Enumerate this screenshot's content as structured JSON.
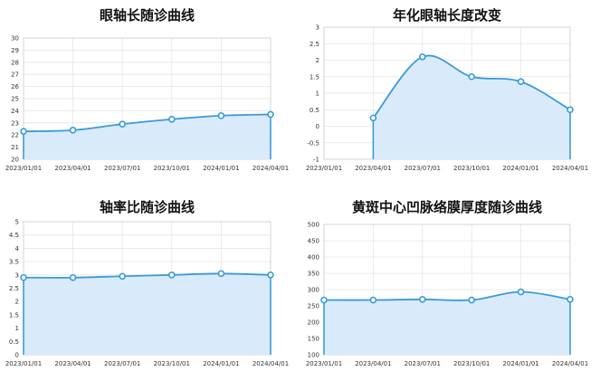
{
  "chart_data": [
    {
      "type": "area",
      "title": "眼轴长随诊曲线",
      "categories": [
        "2023/01/01",
        "2023/04/01",
        "2023/07/01",
        "2023/10/01",
        "2024/01/01",
        "2024/04/01"
      ],
      "series": [
        {
          "values": [
            22.3,
            22.4,
            22.9,
            23.3,
            23.6,
            23.7
          ]
        }
      ],
      "ylim": [
        20,
        30
      ],
      "yticks": [
        "20",
        "21",
        "22",
        "23",
        "24",
        "25",
        "26",
        "27",
        "28",
        "29",
        "30"
      ],
      "grid": true,
      "color": "#3a9ad9",
      "fill": "#d9ebfb"
    },
    {
      "type": "area",
      "title": "年化眼轴长度改变",
      "categories": [
        "2023/01/01",
        "2023/04/01",
        "2023/07/01",
        "2023/10/01",
        "2024/01/01",
        "2024/04/01"
      ],
      "series": [
        {
          "values": [
            null,
            0.25,
            2.1,
            1.5,
            1.35,
            0.5
          ]
        }
      ],
      "ylim": [
        -1,
        3
      ],
      "yticks": [
        "-1",
        "-0.5",
        "0",
        "0.5",
        "1",
        "1.5",
        "2",
        "2.5",
        "3"
      ],
      "grid": true,
      "color": "#3a9ad9",
      "fill": "#d9ebfb"
    },
    {
      "type": "area",
      "title": "轴率比随诊曲线",
      "categories": [
        "2023/01/01",
        "2023/04/01",
        "2023/07/01",
        "2023/10/01",
        "2024/01/01",
        "2024/04/01"
      ],
      "series": [
        {
          "values": [
            2.9,
            2.9,
            2.95,
            3.0,
            3.05,
            3.0
          ]
        }
      ],
      "ylim": [
        0,
        5
      ],
      "yticks": [
        "0",
        "0.5",
        "1",
        "1.5",
        "2",
        "2.5",
        "3",
        "3.5",
        "4",
        "4.5",
        "5"
      ],
      "grid": true,
      "color": "#3a9ad9",
      "fill": "#d9ebfb"
    },
    {
      "type": "area",
      "title": "黄斑中心凹脉络膜厚度随诊曲线",
      "categories": [
        "2023/01/01",
        "2023/04/01",
        "2023/07/01",
        "2023/10/01",
        "2024/01/01",
        "2024/04/01"
      ],
      "series": [
        {
          "values": [
            268,
            268,
            270,
            268,
            293,
            270
          ]
        }
      ],
      "ylim": [
        100,
        500
      ],
      "yticks": [
        "100",
        "150",
        "200",
        "250",
        "300",
        "350",
        "400",
        "450",
        "500"
      ],
      "grid": true,
      "color": "#3a9ad9",
      "fill": "#d9ebfb"
    }
  ]
}
